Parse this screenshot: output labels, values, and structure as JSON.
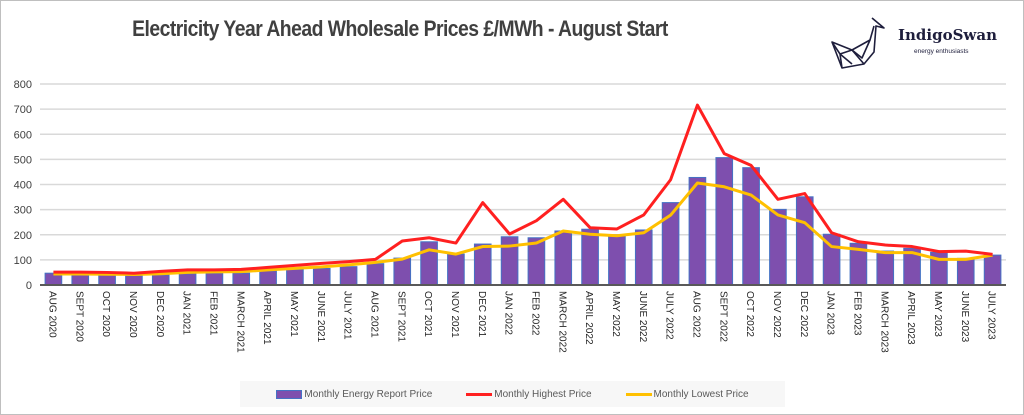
{
  "logo": {
    "name": "IndigoSwan",
    "tagline": "energy enthusiasts"
  },
  "colors": {
    "bar_fill": "#7e4fae",
    "bar_edge": "#4472c4",
    "highest_line": "#ff2020",
    "lowest_line": "#ffc000",
    "gridline": "#d9d9d9",
    "axis": "#595959"
  },
  "chart_data": {
    "type": "bar",
    "title": "Electricity Year Ahead Wholesale Prices £/MWh - August Start",
    "xlabel": "",
    "ylabel": "",
    "ylim": [
      0,
      800
    ],
    "yticks": [
      0,
      100,
      200,
      300,
      400,
      500,
      600,
      700,
      800
    ],
    "grid": true,
    "legend_position": "bottom",
    "categories": [
      "AUG 2020",
      "SEPT 2020",
      "OCT 2020",
      "NOV 2020",
      "DEC 2020",
      "JAN 2021",
      "FEB 2021",
      "MARCH 2021",
      "APRIL 2021",
      "MAY 2021",
      "JUNE 2021",
      "JULY 2021",
      "AUG 2021",
      "SEPT 2021",
      "OCT 2021",
      "NOV 2021",
      "DEC 2021",
      "JAN 2022",
      "FEB 2022",
      "MARCH 2022",
      "APRIL 2022",
      "MAY 2022",
      "JUNE 2022",
      "JULY 2022",
      "AUG 2022",
      "SEPT 2022",
      "OCT 2022",
      "NOV 2022",
      "DEC 2022",
      "JAN 2023",
      "FEB 2023",
      "MARCH 2023",
      "APRIL 2023",
      "MAY 2023",
      "JUNE 2023",
      "JULY 2023"
    ],
    "series": [
      {
        "name": "Monthly Energy Report Price",
        "kind": "bar",
        "values": [
          47,
          40,
          40,
          38,
          40,
          45,
          47,
          47,
          56,
          62,
          66,
          73,
          85,
          107,
          172,
          123,
          163,
          192,
          188,
          215,
          222,
          200,
          219,
          328,
          428,
          507,
          467,
          301,
          351,
          202,
          166,
          135,
          146,
          130,
          106,
          119
        ]
      },
      {
        "name": "Monthly Highest Price",
        "kind": "line",
        "values": [
          51,
          51,
          50,
          47,
          54,
          60,
          60,
          62,
          70,
          78,
          86,
          93,
          102,
          175,
          188,
          167,
          328,
          203,
          256,
          341,
          228,
          223,
          279,
          419,
          716,
          523,
          476,
          341,
          364,
          208,
          172,
          159,
          153,
          133,
          135,
          122
        ]
      },
      {
        "name": "Monthly Lowest Price",
        "kind": "line",
        "values": [
          44,
          44,
          43,
          42,
          45,
          50,
          52,
          53,
          60,
          66,
          72,
          80,
          90,
          103,
          140,
          123,
          153,
          155,
          167,
          215,
          202,
          196,
          208,
          278,
          406,
          391,
          358,
          279,
          248,
          153,
          142,
          129,
          129,
          102,
          102,
          119
        ]
      }
    ]
  }
}
